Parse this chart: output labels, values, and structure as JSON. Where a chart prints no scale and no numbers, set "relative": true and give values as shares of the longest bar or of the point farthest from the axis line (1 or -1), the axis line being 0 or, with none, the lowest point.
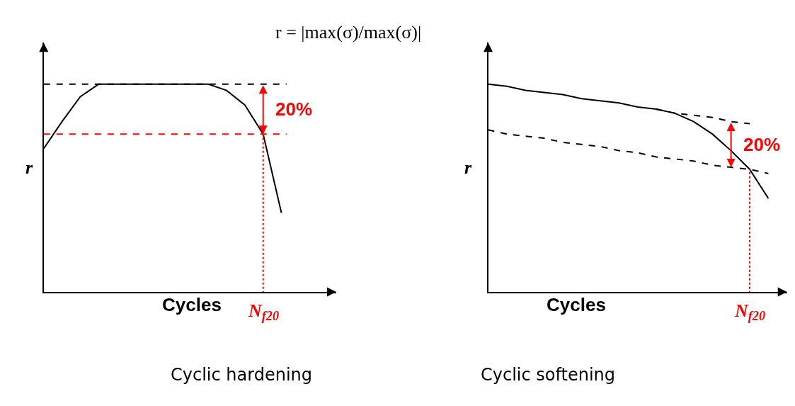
{
  "chart_data": [
    {
      "type": "line",
      "title": "Cyclic hardening",
      "subtitle": "r = |max(σ)/max(σ)|",
      "xlabel": "Cycles",
      "ylabel": "r",
      "relative": true,
      "categories": [
        null,
        null,
        null,
        null,
        null,
        null,
        null,
        null,
        null,
        null,
        null,
        null,
        null,
        null,
        null,
        null,
        null
      ],
      "series": [
        {
          "color": "#000000",
          "line_style": "solid",
          "values": [
            0.69,
            0.82,
            0.94,
            1,
            1,
            1,
            1,
            1,
            1,
            1,
            0.97,
            0.9,
            0.76,
            0.38,
            null,
            null,
            null
          ]
        }
      ],
      "ref_lines": [
        {
          "axis": "y",
          "value": 1,
          "color": "#000000",
          "line_style": "dashed"
        },
        {
          "axis": "y",
          "value": 0.76,
          "color": "#ff0000",
          "line_style": "dashed"
        }
      ],
      "annotations": [
        "20%",
        "N$_{f20}$"
      ]
    },
    {
      "type": "line",
      "title": "Cyclic softening",
      "xlabel": "Cycles",
      "ylabel": "r",
      "relative": true,
      "categories": [
        null,
        null,
        null,
        null,
        null,
        null,
        null,
        null,
        null,
        null,
        null,
        null,
        null,
        null,
        null,
        null,
        null
      ],
      "series": [
        {
          "color": "#000000",
          "line_style": "solid",
          "values": [
            1,
            0.99,
            0.97,
            0.96,
            0.95,
            0.93,
            0.92,
            0.91,
            0.89,
            0.88,
            0.86,
            0.82,
            0.76,
            0.68,
            0.59,
            0.45,
            null
          ]
        },
        {
          "color": "#000000",
          "line_style": "dashed",
          "values": [
            null,
            null,
            null,
            null,
            null,
            null,
            null,
            null,
            null,
            0.88,
            0.86,
            0.85,
            0.84,
            0.82,
            0.81,
            null,
            null
          ]
        },
        {
          "color": "#000000",
          "line_style": "dashed",
          "values": [
            0.78,
            0.76,
            0.75,
            0.74,
            0.72,
            0.71,
            0.7,
            0.68,
            0.67,
            0.65,
            0.64,
            0.63,
            0.61,
            0.6,
            0.59,
            0.57,
            null
          ]
        }
      ],
      "annotations": [
        "20%",
        "N$_{f20}$"
      ]
    }
  ]
}
